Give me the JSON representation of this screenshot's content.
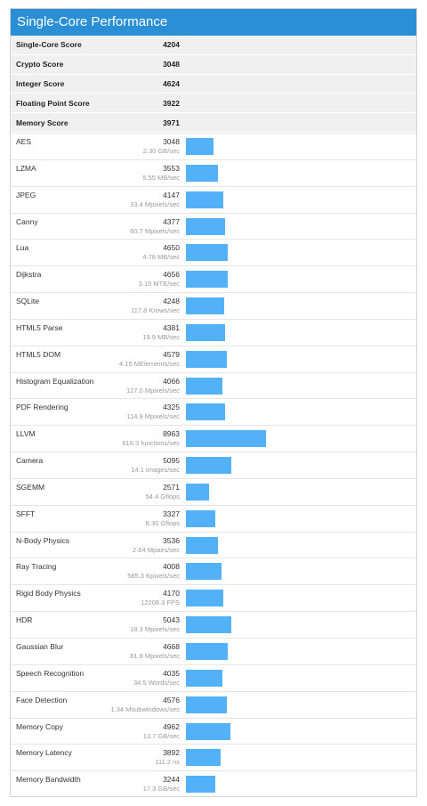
{
  "title": "Single-Core Performance",
  "summary": [
    {
      "label": "Single-Core Score",
      "score": "4204"
    },
    {
      "label": "Crypto Score",
      "score": "3048"
    },
    {
      "label": "Integer Score",
      "score": "4624"
    },
    {
      "label": "Floating Point Score",
      "score": "3922"
    },
    {
      "label": "Memory Score",
      "score": "3971"
    }
  ],
  "benchmarks": [
    {
      "name": "AES",
      "score": "3048",
      "desc": "2.30 GB/sec"
    },
    {
      "name": "LZMA",
      "score": "3553",
      "desc": "5.55 MB/sec"
    },
    {
      "name": "JPEG",
      "score": "4147",
      "desc": "33.4 Mpixels/sec"
    },
    {
      "name": "Canny",
      "score": "4377",
      "desc": "60.7 Mpixels/sec"
    },
    {
      "name": "Lua",
      "score": "4650",
      "desc": "4.78 MB/sec"
    },
    {
      "name": "Dijkstra",
      "score": "4656",
      "desc": "3.15 MTE/sec"
    },
    {
      "name": "SQLite",
      "score": "4248",
      "desc": "117.8 Krows/sec"
    },
    {
      "name": "HTML5 Parse",
      "score": "4381",
      "desc": "19.9 MB/sec"
    },
    {
      "name": "HTML5 DOM",
      "score": "4579",
      "desc": "4.15 MElements/sec"
    },
    {
      "name": "Histogram Equalization",
      "score": "4066",
      "desc": "127.0 Mpixels/sec"
    },
    {
      "name": "PDF Rendering",
      "score": "4325",
      "desc": "114.9 Mpixels/sec"
    },
    {
      "name": "LLVM",
      "score": "8963",
      "desc": "616.3 functions/sec"
    },
    {
      "name": "Camera",
      "score": "5095",
      "desc": "14.1 images/sec"
    },
    {
      "name": "SGEMM",
      "score": "2571",
      "desc": "54.4 Gflops"
    },
    {
      "name": "SFFT",
      "score": "3327",
      "desc": "8.30 Gflops"
    },
    {
      "name": "N-Body Physics",
      "score": "3536",
      "desc": "2.64 Mpairs/sec"
    },
    {
      "name": "Ray Tracing",
      "score": "4008",
      "desc": "585.3 Kpixels/sec"
    },
    {
      "name": "Rigid Body Physics",
      "score": "4170",
      "desc": "12208.3 FPS"
    },
    {
      "name": "HDR",
      "score": "5043",
      "desc": "18.3 Mpixels/sec"
    },
    {
      "name": "Gaussian Blur",
      "score": "4668",
      "desc": "81.8 Mpixels/sec"
    },
    {
      "name": "Speech Recognition",
      "score": "4035",
      "desc": "34.5 Words/sec"
    },
    {
      "name": "Face Detection",
      "score": "4576",
      "desc": "1.34 Msubwindows/sec"
    },
    {
      "name": "Memory Copy",
      "score": "4962",
      "desc": "13.7 GB/sec"
    },
    {
      "name": "Memory Latency",
      "score": "3892",
      "desc": "111.2 ns"
    },
    {
      "name": "Memory Bandwidth",
      "score": "3244",
      "desc": "17.3 GB/sec"
    }
  ],
  "colors": {
    "header": "#2b8fd6",
    "bar": "#52b1f7"
  }
}
